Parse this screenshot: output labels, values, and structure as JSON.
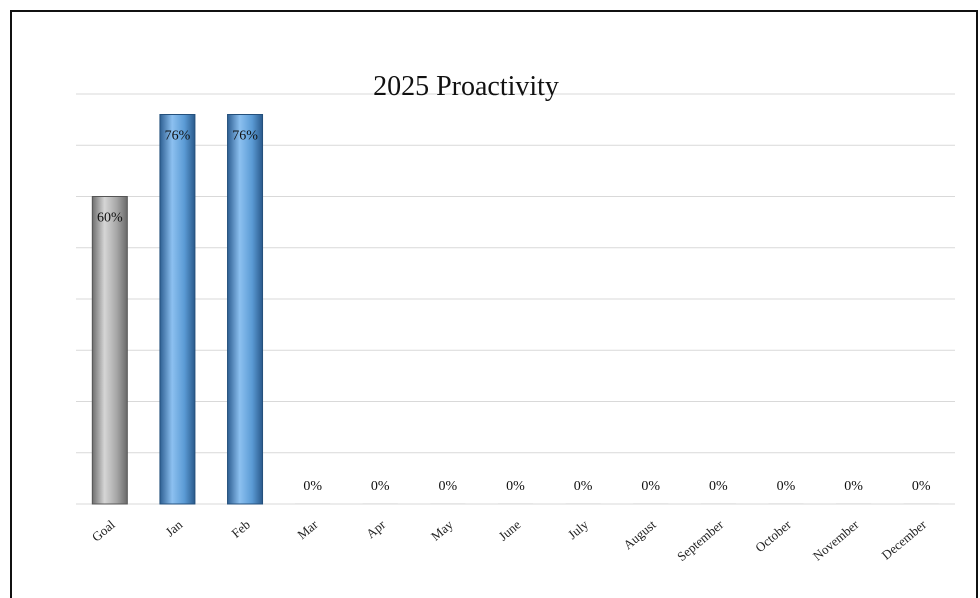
{
  "chart_data": {
    "type": "bar",
    "title": "2025 Proactivity",
    "categories": [
      "Goal",
      "Jan",
      "Feb",
      "Mar",
      "Apr",
      "May",
      "June",
      "July",
      "August",
      "September",
      "October",
      "November",
      "December"
    ],
    "values": [
      60,
      76,
      76,
      0,
      0,
      0,
      0,
      0,
      0,
      0,
      0,
      0,
      0
    ],
    "value_labels": [
      "60%",
      "76%",
      "76%",
      "0%",
      "0%",
      "0%",
      "0%",
      "0%",
      "0%",
      "0%",
      "0%",
      "0%",
      "0%"
    ],
    "xlabel": "",
    "ylabel": "",
    "ylim": [
      0,
      80
    ],
    "grid": true,
    "legend": "none",
    "colors": {
      "goal": "#9a9a9a",
      "month": "#5b9bd5",
      "grid": "#d9d9d9"
    }
  }
}
